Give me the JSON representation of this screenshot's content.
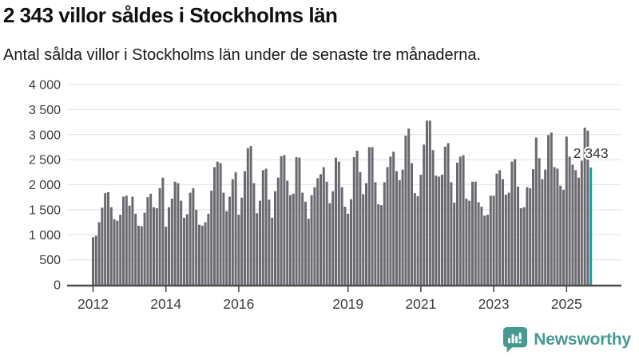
{
  "header": {
    "title": "2 343 villor såldes i Stockholms län",
    "subtitle": "Antal sålda villor i Stockholms län under de senaste tre månaderna."
  },
  "chart_data": {
    "type": "bar",
    "title": "2 343 villor såldes i Stockholms län",
    "subtitle": "Antal sålda villor i Stockholms län under de senaste tre månaderna.",
    "unit": "sålda villor (rullande tre månader)",
    "frequency": "monthly",
    "x_start": "2012-01",
    "x_end": "2025-09",
    "values": [
      950,
      980,
      1250,
      1540,
      1830,
      1850,
      1550,
      1310,
      1280,
      1400,
      1760,
      1780,
      1580,
      1760,
      1420,
      1180,
      1170,
      1440,
      1750,
      1820,
      1550,
      1530,
      1930,
      2140,
      1160,
      1550,
      1720,
      2060,
      2030,
      1680,
      1340,
      1410,
      1840,
      1930,
      1500,
      1200,
      1180,
      1250,
      1420,
      1880,
      2350,
      2460,
      2430,
      1840,
      1470,
      1760,
      2110,
      2250,
      1400,
      1740,
      2270,
      2730,
      2770,
      2030,
      1430,
      1680,
      2290,
      2320,
      1700,
      1340,
      1870,
      2140,
      2570,
      2590,
      2080,
      1790,
      1820,
      2550,
      2540,
      1840,
      1660,
      1320,
      1790,
      1950,
      2130,
      2210,
      2350,
      2060,
      1630,
      1870,
      2540,
      2460,
      1950,
      1560,
      1420,
      1710,
      2550,
      2680,
      2250,
      1810,
      2030,
      2750,
      2750,
      2050,
      1610,
      1590,
      2050,
      2350,
      2560,
      2660,
      2270,
      2090,
      2300,
      2980,
      3120,
      2430,
      1830,
      1770,
      2200,
      2800,
      3280,
      3280,
      2690,
      2180,
      2160,
      2200,
      2760,
      2830,
      2050,
      1640,
      2440,
      2560,
      2590,
      1720,
      1680,
      2060,
      2060,
      1650,
      1560,
      1380,
      1400,
      1780,
      1780,
      2220,
      2290,
      2110,
      1800,
      1840,
      2460,
      2510,
      1960,
      1530,
      1550,
      1950,
      1930,
      2310,
      2940,
      2530,
      2110,
      2300,
      2990,
      3040,
      2350,
      2320,
      1980,
      1900,
      2960,
      2560,
      2400,
      2290,
      2140,
      2480,
      3140,
      3080,
      2343
    ],
    "highlight": {
      "index": 164,
      "value": 2343,
      "label": "2 343"
    },
    "y_axis": {
      "min": 0,
      "max": 4000,
      "step": 500,
      "tick_labels": [
        "0",
        "500",
        "1 000",
        "1 500",
        "2 000",
        "2 500",
        "3 000",
        "3 500",
        "4 000"
      ]
    },
    "x_axis": {
      "tick_years": [
        "2012",
        "2014",
        "2016",
        "2019",
        "2021",
        "2023",
        "2025"
      ]
    },
    "grid": true,
    "legend": false,
    "colors": {
      "bar": "#696970",
      "highlight": "#14a2a0",
      "grid": "#e6e6e6",
      "axis": "#4d4d4d",
      "tick_text": "#3d3d3d",
      "value_label_text": "#333333",
      "value_label_halo": "#ffffff"
    }
  },
  "footer": {
    "brand": "Newsworthy",
    "brand_color": "#479a92",
    "logo_icon": "newsworthy-speech-bubble-bar-chart-icon"
  }
}
